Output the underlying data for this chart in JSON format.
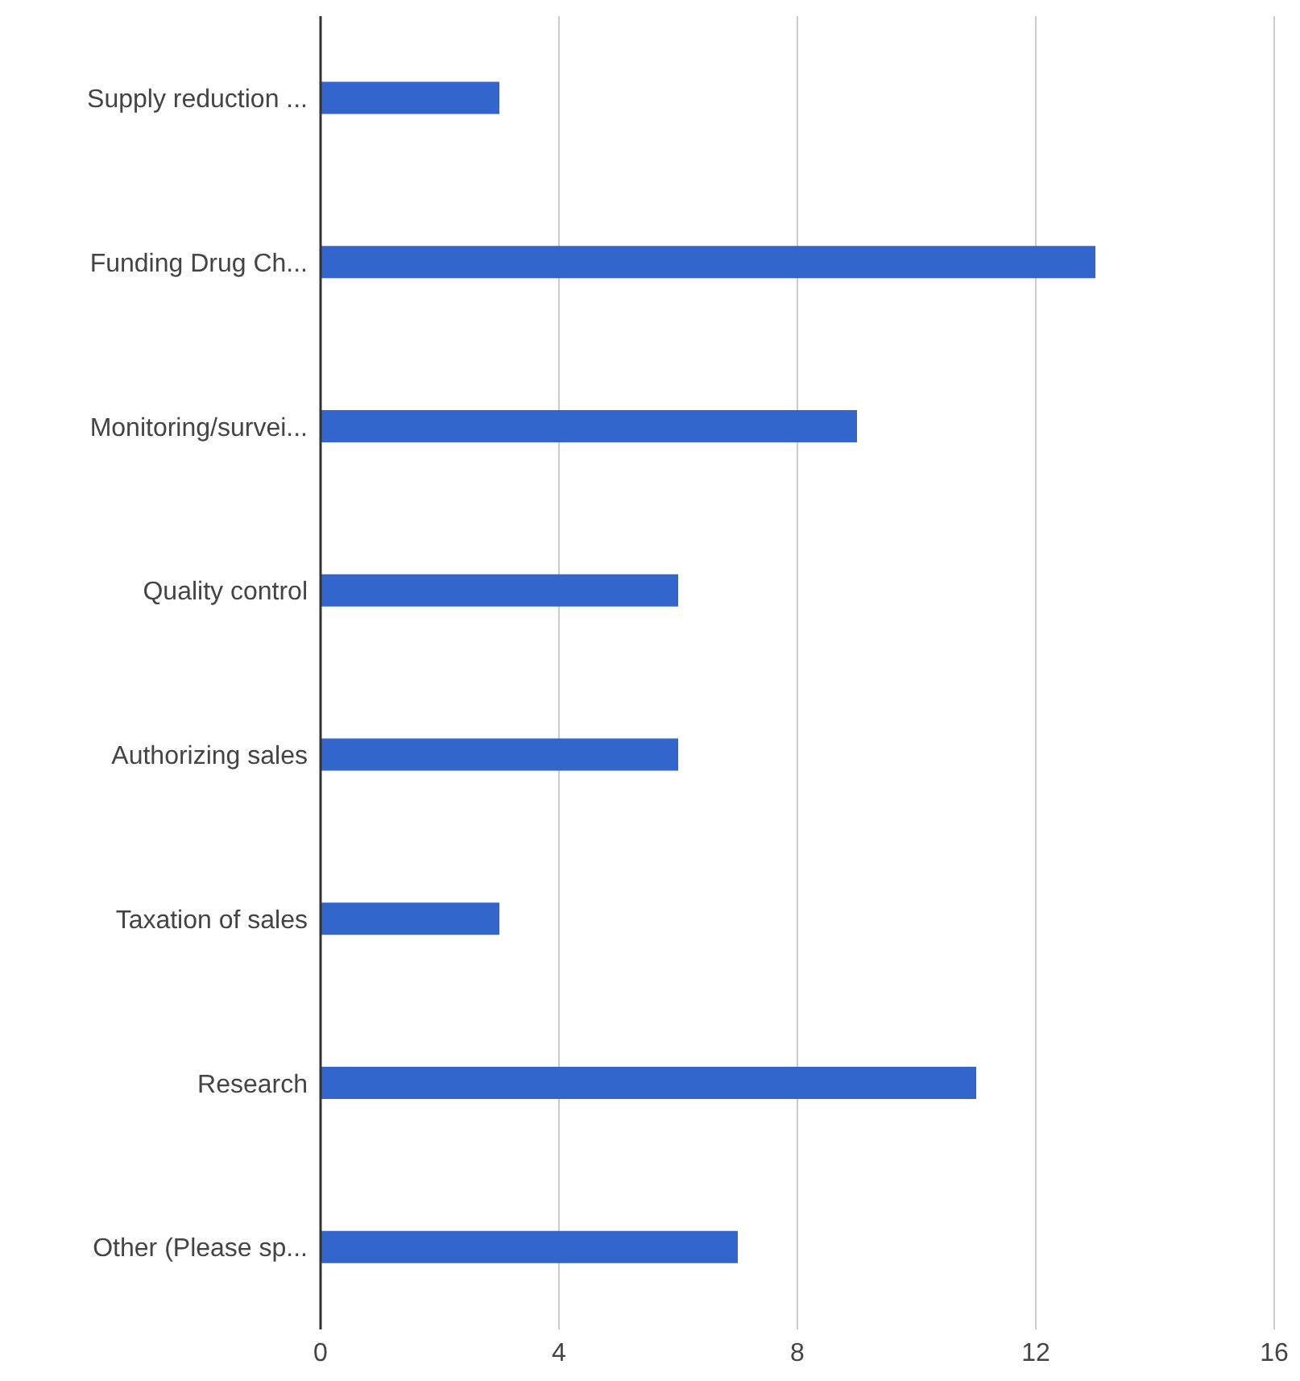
{
  "chart_data": {
    "type": "bar",
    "orientation": "horizontal",
    "categories": [
      "Supply reduction ...",
      "Funding Drug Ch...",
      "Monitoring/survei...",
      "Quality control",
      "Authorizing sales",
      "Taxation of sales",
      "Research",
      "Other (Please sp..."
    ],
    "values": [
      3,
      13,
      9,
      6,
      6,
      3,
      11,
      7
    ],
    "color": "#3366cc",
    "xlim": [
      0,
      16
    ],
    "xticks": [
      0,
      4,
      8,
      12,
      16
    ],
    "grid": "x"
  }
}
